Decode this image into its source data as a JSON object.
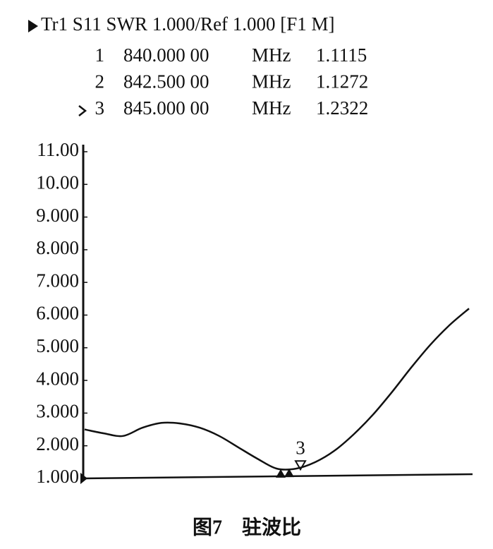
{
  "chart_data": {
    "type": "line",
    "header": "Tr1 S11 SWR 1.000/Ref 1.000 [F1 M]",
    "markers": [
      {
        "label": "1",
        "frequency": "840.000 00",
        "unit": "MHz",
        "value": 1.1115
      },
      {
        "label": "2",
        "frequency": "842.500 00",
        "unit": "MHz",
        "value": 1.1272
      },
      {
        "label": "3",
        "frequency": "845.000 00",
        "unit": "MHz",
        "value": 1.2322
      }
    ],
    "values": [
      2.5,
      2.38,
      2.3,
      2.55,
      2.7,
      2.68,
      2.55,
      2.3,
      1.95,
      1.6,
      1.3,
      1.3,
      1.5,
      1.85,
      2.35,
      2.95,
      3.65,
      4.4,
      5.1,
      5.7,
      6.2
    ],
    "color": "#111111",
    "ylim": [
      1,
      11
    ],
    "yticks": [
      {
        "value": 1,
        "label": "1.000"
      },
      {
        "value": 2,
        "label": "2.000"
      },
      {
        "value": 3,
        "label": "3.000"
      },
      {
        "value": 4,
        "label": "4.000"
      },
      {
        "value": 5,
        "label": "5.000"
      },
      {
        "value": 6,
        "label": "6.000"
      },
      {
        "value": 7,
        "label": "7.000"
      },
      {
        "value": 8,
        "label": "8.000"
      },
      {
        "value": 9,
        "label": "9.000"
      },
      {
        "value": 10,
        "label": "10.00"
      },
      {
        "value": 11,
        "label": "11.00"
      }
    ],
    "grid": false,
    "caption": "图7　驻波比"
  }
}
